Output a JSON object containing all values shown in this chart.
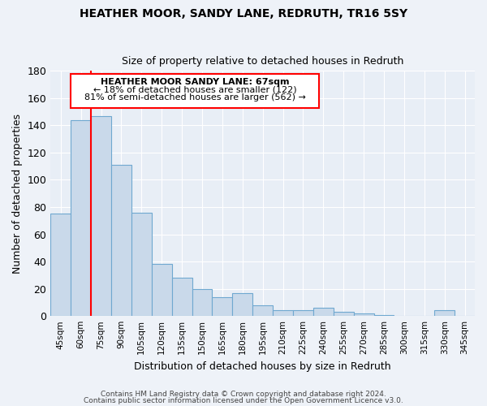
{
  "title1": "HEATHER MOOR, SANDY LANE, REDRUTH, TR16 5SY",
  "title2": "Size of property relative to detached houses in Redruth",
  "xlabel": "Distribution of detached houses by size in Redruth",
  "ylabel": "Number of detached properties",
  "categories": [
    "45sqm",
    "60sqm",
    "75sqm",
    "90sqm",
    "105sqm",
    "120sqm",
    "135sqm",
    "150sqm",
    "165sqm",
    "180sqm",
    "195sqm",
    "210sqm",
    "225sqm",
    "240sqm",
    "255sqm",
    "270sqm",
    "285sqm",
    "300sqm",
    "315sqm",
    "330sqm",
    "345sqm"
  ],
  "values": [
    75,
    144,
    147,
    111,
    76,
    38,
    28,
    20,
    14,
    17,
    8,
    4,
    4,
    6,
    3,
    2,
    1,
    0,
    0,
    4,
    0
  ],
  "bar_color": "#c9d9ea",
  "bar_edge_color": "#6fa8d0",
  "bar_width": 1.0,
  "red_line_x": 1.5,
  "ylim": [
    0,
    180
  ],
  "yticks": [
    0,
    20,
    40,
    60,
    80,
    100,
    120,
    140,
    160,
    180
  ],
  "annotation_title": "HEATHER MOOR SANDY LANE: 67sqm",
  "annotation_line1": "← 18% of detached houses are smaller (122)",
  "annotation_line2": "81% of semi-detached houses are larger (562) →",
  "footer1": "Contains HM Land Registry data © Crown copyright and database right 2024.",
  "footer2": "Contains public sector information licensed under the Open Government Licence v3.0.",
  "bg_color": "#eef2f8",
  "plot_bg_color": "#e8eef6"
}
